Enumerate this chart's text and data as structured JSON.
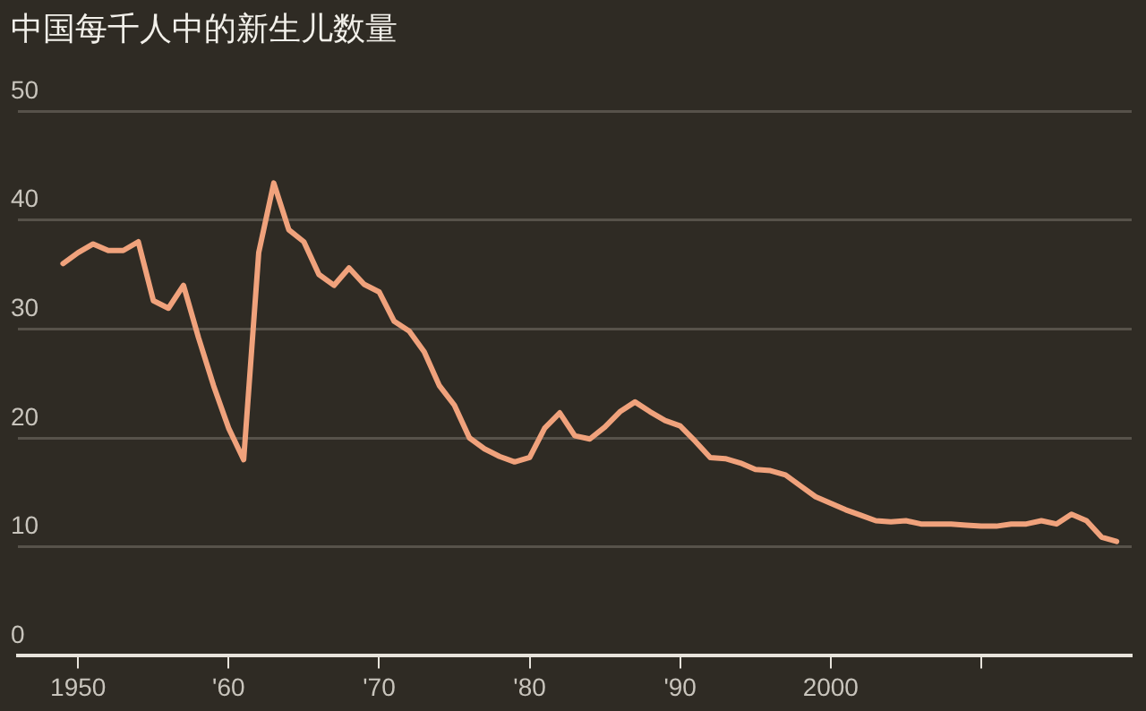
{
  "chart_data": {
    "type": "line",
    "title": "中国每千人中的新生儿数量",
    "x": [
      1949,
      1950,
      1951,
      1952,
      1953,
      1954,
      1955,
      1956,
      1957,
      1958,
      1959,
      1960,
      1961,
      1962,
      1963,
      1964,
      1965,
      1966,
      1967,
      1968,
      1969,
      1970,
      1971,
      1972,
      1973,
      1974,
      1975,
      1976,
      1977,
      1978,
      1979,
      1980,
      1981,
      1982,
      1983,
      1984,
      1985,
      1986,
      1987,
      1988,
      1989,
      1990,
      1991,
      1992,
      1993,
      1994,
      1995,
      1996,
      1997,
      1998,
      1999,
      2000,
      2001,
      2002,
      2003,
      2004,
      2005,
      2006,
      2007,
      2008,
      2009,
      2010,
      2011,
      2012,
      2013,
      2014,
      2015,
      2016,
      2017,
      2018,
      2019
    ],
    "series": [
      {
        "color": "#f0a27c",
        "values": [
          36,
          37,
          37.8,
          37.2,
          37.2,
          38,
          32.6,
          31.9,
          34,
          29.2,
          24.8,
          20.9,
          18,
          37,
          43.4,
          39.1,
          38,
          35,
          34,
          35.6,
          34.1,
          33.4,
          30.7,
          29.8,
          27.9,
          24.8,
          23,
          20,
          19,
          18.3,
          17.8,
          18.2,
          20.9,
          22.3,
          20.2,
          19.9,
          21,
          22.4,
          23.3,
          22.4,
          21.6,
          21.1,
          19.7,
          18.2,
          18.1,
          17.7,
          17.1,
          17,
          16.6,
          15.6,
          14.6,
          14,
          13.4,
          12.9,
          12.4,
          12.3,
          12.4,
          12.1,
          12.1,
          12.1,
          12,
          11.9,
          11.9,
          12.1,
          12.1,
          12.4,
          12.1,
          13,
          12.4,
          10.9,
          10.5
        ]
      }
    ],
    "xlim": [
      1946,
      2020
    ],
    "xticks": [
      {
        "value": 1950,
        "label": "1950"
      },
      {
        "value": 1960,
        "label": "'60"
      },
      {
        "value": 1970,
        "label": "'70"
      },
      {
        "value": 1980,
        "label": "'80"
      },
      {
        "value": 1990,
        "label": "'90"
      },
      {
        "value": 2000,
        "label": "2000"
      },
      {
        "value": 2010,
        "label": null
      }
    ],
    "ylim": [
      0,
      50
    ],
    "yticks": [
      0,
      10,
      20,
      30,
      40,
      50
    ],
    "grid": "y",
    "legend": false,
    "marker": "none",
    "line_style": "solid"
  }
}
